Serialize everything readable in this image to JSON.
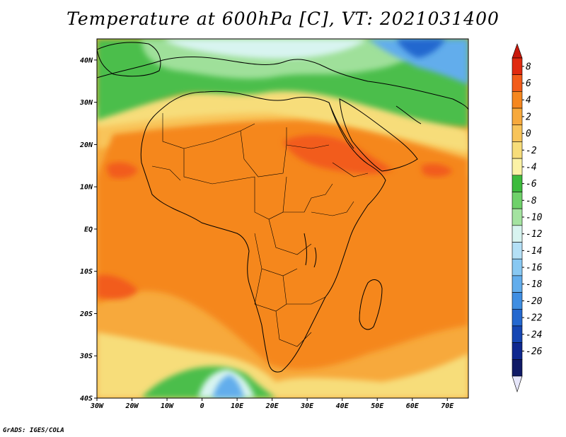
{
  "title": "Temperature at 600hPa [C], VT: 2021031400",
  "credit": "GrADS: IGES/COLA",
  "map": {
    "lon_range": [
      -30,
      76
    ],
    "lat_range": [
      -40,
      45
    ],
    "lon_ticks": [
      {
        "value": -30,
        "label": "30W"
      },
      {
        "value": -20,
        "label": "20W"
      },
      {
        "value": -10,
        "label": "10W"
      },
      {
        "value": 0,
        "label": "0"
      },
      {
        "value": 10,
        "label": "10E"
      },
      {
        "value": 20,
        "label": "20E"
      },
      {
        "value": 30,
        "label": "30E"
      },
      {
        "value": 40,
        "label": "40E"
      },
      {
        "value": 50,
        "label": "50E"
      },
      {
        "value": 60,
        "label": "60E"
      },
      {
        "value": 70,
        "label": "70E"
      }
    ],
    "lat_ticks": [
      {
        "value": 40,
        "label": "40N"
      },
      {
        "value": 30,
        "label": "30N"
      },
      {
        "value": 20,
        "label": "20N"
      },
      {
        "value": 10,
        "label": "10N"
      },
      {
        "value": 0,
        "label": "EQ"
      },
      {
        "value": -10,
        "label": "10S"
      },
      {
        "value": -20,
        "label": "20S"
      },
      {
        "value": -30,
        "label": "30S"
      },
      {
        "value": -40,
        "label": "40S"
      }
    ]
  },
  "colorbar": {
    "labels": [
      "8",
      "6",
      "4",
      "2",
      "0",
      "-2",
      "-4",
      "-6",
      "-8",
      "-10",
      "-12",
      "-14",
      "-16",
      "-18",
      "-20",
      "-22",
      "-24",
      "-26"
    ],
    "colors": [
      "#e02a10",
      "#f25c1a",
      "#f5871f",
      "#f7a93c",
      "#f8c45a",
      "#f7dd7a",
      "#fbf2a6",
      "#3dbb3d",
      "#6fd16a",
      "#a4e3a0",
      "#d8f4f0",
      "#b4e0f6",
      "#88c8f2",
      "#62adec",
      "#3f8ee2",
      "#2468cf",
      "#1546b3",
      "#0e278f",
      "#101a66"
    ],
    "top_color": "#c8180b",
    "bottom_color": "#e6e6fa"
  },
  "field": {
    "regions": [
      {
        "name": "cold-north-green",
        "color": "#4cbe4c"
      },
      {
        "name": "cold-north-light",
        "color": "#9fe09a"
      },
      {
        "name": "cold-north-cyan",
        "color": "#d8f4f0"
      },
      {
        "name": "cold-northeast-blue",
        "color": "#62adec"
      },
      {
        "name": "south-cold-blue",
        "color": "#62adec"
      },
      {
        "name": "warm-orange",
        "color": "#f5871f"
      },
      {
        "name": "warm-hot",
        "color": "#f25c1a"
      },
      {
        "name": "base-mid",
        "color": "#f7a93c"
      }
    ]
  }
}
